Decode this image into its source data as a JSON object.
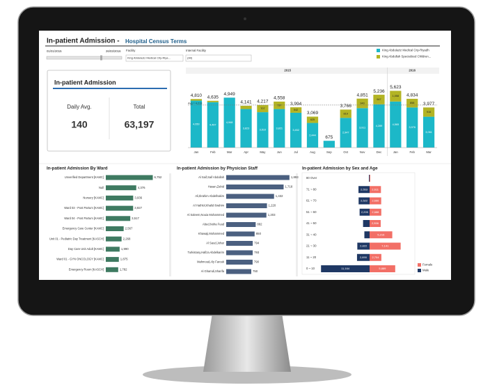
{
  "header": {
    "title": "In-patient Admission -",
    "subtitle": "Hospital Census Terms"
  },
  "filters": {
    "date_start": "01/01/2015",
    "date_end": "26/03/2016",
    "facility_label": "Facility",
    "facility_value": "King Abdulaziz Medical City-Riya...",
    "internal_label": "Internal Facility",
    "internal_value": "(All)"
  },
  "kpi": {
    "title": "In-patient Admission",
    "daily_label": "Daily Avg.",
    "daily_value": "140",
    "total_label": "Total",
    "total_value": "63,197"
  },
  "chart_data": [
    {
      "type": "stacked-bar",
      "categories": [
        "Jan",
        "Feb",
        "Mar",
        "Apr",
        "May",
        "Jun",
        "Jul",
        "Aug",
        "Sep",
        "Oct",
        "Nov",
        "Dec",
        "Jan",
        "Feb",
        "Mar"
      ],
      "category_years": [
        "2015",
        "2015",
        "2015",
        "2015",
        "2015",
        "2015",
        "2015",
        "2015",
        "2015",
        "2015",
        "2015",
        "2015",
        "2016",
        "2016",
        "2016"
      ],
      "series": [
        {
          "name": "King Abdulaziz Medical City-Riyadh",
          "color": "#1cb8c8",
          "values": [
            4650,
            4497,
            4948,
            3823,
            3510,
            3821,
            3452,
            2444,
            675,
            2947,
            3911,
            4289,
            4565,
            3976,
            3061
          ],
          "value_labels": [
            "4,650",
            "4,497",
            "4,948",
            "3,823",
            "3,510",
            "3,821",
            "3,452",
            "2,444",
            null,
            "2,947",
            "3,911",
            "4,289",
            "4,565",
            "3,976",
            "3,061"
          ]
        },
        {
          "name": "King Abdullah Specialized Children...",
          "color": "#b3b424",
          "values": [
            160,
            138,
            1,
            318,
            707,
            737,
            542,
            625,
            0,
            819,
            940,
            947,
            1058,
            858,
            916
          ],
          "value_labels": [
            null,
            null,
            null,
            null,
            "707",
            "737",
            "542",
            "625",
            null,
            "819",
            "940",
            "947",
            "1,058",
            "858",
            "916"
          ]
        }
      ],
      "totals": [
        "4,810",
        "4,635",
        "4,949",
        "4,141",
        "4,217",
        "4,558",
        "3,994",
        "3,069",
        "675",
        "3,766",
        "4,851",
        "5,236",
        "5,623",
        "4,834",
        "3,977"
      ],
      "avg": 4213,
      "annotation": "Avg = 4,213",
      "ylim": [
        0,
        6000
      ],
      "legend": "top-right"
    },
    {
      "type": "hbar",
      "title": "In-patient Admission By Ward",
      "color": "#3e7a61",
      "categories": [
        "Unverified Department [KAMC]",
        "Null",
        "Nursery [KAMC]",
        "Ward 03 - Post Partum [KAMC]",
        "Ward 04 - Post Partum [KAMC]",
        "Emergency Care Center [KAMC]",
        "Unit 01 - Pediatric Day Treatment [KASCH]",
        "Day Care Unit Adult [KAMC]",
        "Ward 01 - GYN ONCOLOGY [KAMC]",
        "Emergency Room [KASCH]"
      ],
      "values": [
        6752,
        4376,
        3936,
        3927,
        3517,
        2567,
        2268,
        1990,
        1875,
        1782
      ],
      "value_labels": [
        "6,752",
        "4,376",
        "3,936",
        "3,927",
        "3,517",
        "2,567",
        "2,268",
        "1,990",
        "1,875",
        "1,782"
      ],
      "xlim": [
        0,
        8000
      ]
    },
    {
      "type": "hbar",
      "title": "In-patient Admission by Physician Staff",
      "color": "#4b6080",
      "categories": [
        "Al Saif,Saif Abdullah",
        "Hasan,Zahid",
        "Ali,Ibrahim Abdelhakim",
        "Al Hathlol,Khalid Ibrahim",
        "Al Saleem,Nouia Mohammed",
        "Abed,Noha Fuad",
        "Khawaji,Mohammed",
        "Al Saud,Johar",
        "Turkistany,Hafiza Abdelkarim",
        "Mahmoud,Aly Farouk",
        "Al Ghamdi,Sharifa"
      ],
      "values": [
        1893,
        1718,
        1432,
        1220,
        1203,
        882,
        850,
        794,
        793,
        790,
        750
      ],
      "value_labels": [
        "1,893",
        "1,718",
        "1,432",
        "1,220",
        "1,203",
        "882",
        "850",
        "794",
        "793",
        "790",
        "750"
      ],
      "xlim": [
        0,
        2000
      ]
    },
    {
      "type": "pyramid",
      "title": "In-patient Admission by Sex and Age",
      "categories": [
        "80 Over",
        "71 ~ 80",
        "61 ~ 70",
        "51 ~ 60",
        "41 ~ 50",
        "31 ~ 40",
        "21 ~ 30",
        "11 ~ 20",
        "0 ~ 10"
      ],
      "series": [
        {
          "name": "Female",
          "color": "#f26f66",
          "values": [
            150,
            2611,
            2666,
            2688,
            2556,
            5216,
            7141,
            2704,
            5889
          ],
          "value_labels": [
            null,
            "2,611",
            "2,666",
            "2,688",
            "2,556",
            "5,216",
            "7,141",
            "2,704",
            "5,889"
          ]
        },
        {
          "name": "Male",
          "color": "#1f3864",
          "values": [
            150,
            2553,
            2522,
            2295,
            1500,
            1200,
            2822,
            2890,
            11164
          ],
          "value_labels": [
            null,
            "2,553",
            "2,522",
            "2,295",
            null,
            null,
            "2,822",
            "2,890",
            "11,164"
          ]
        }
      ],
      "xlim": [
        0,
        12000
      ]
    }
  ]
}
